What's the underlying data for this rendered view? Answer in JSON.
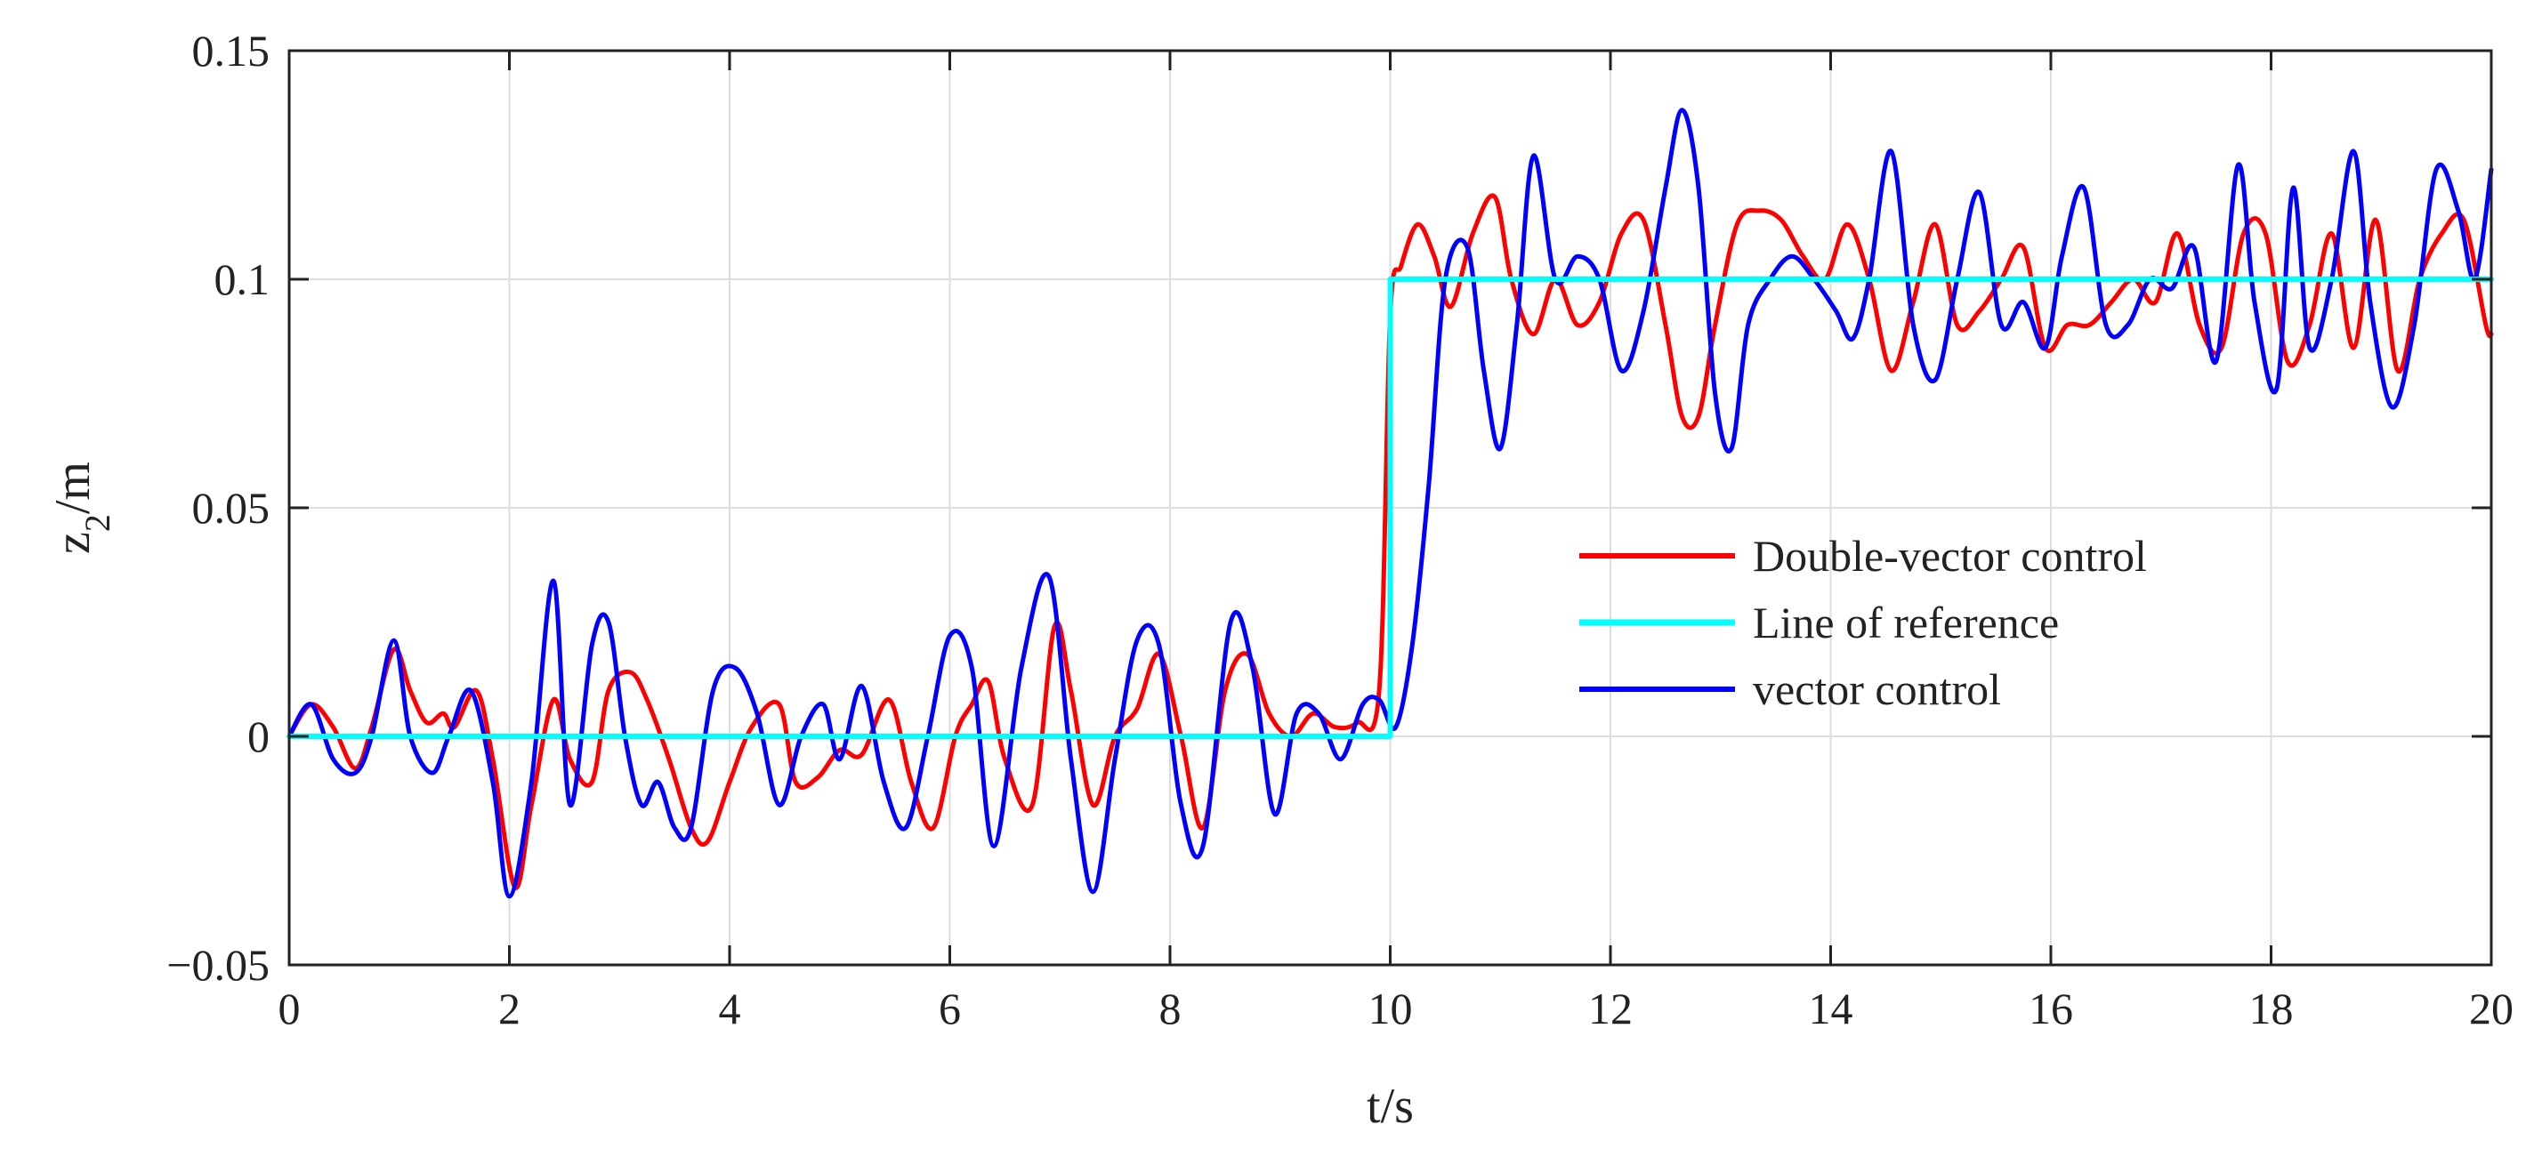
{
  "chart_data": {
    "type": "line",
    "title": "",
    "xlabel": "t/s",
    "ylabel": {
      "main": "z",
      "sub": "2",
      "unit": "/m"
    },
    "xlim": [
      0,
      20
    ],
    "ylim": [
      -0.05,
      0.15
    ],
    "xticks": [
      0,
      2,
      4,
      6,
      8,
      10,
      12,
      14,
      16,
      18,
      20
    ],
    "xtick_labels": [
      "0",
      "2",
      "4",
      "6",
      "8",
      "10",
      "12",
      "14",
      "16",
      "18",
      "20"
    ],
    "yticks": [
      -0.05,
      0,
      0.05,
      0.1,
      0.15
    ],
    "ytick_labels": [
      "−0.05",
      "0",
      "0.05",
      "0.1",
      "0.15"
    ],
    "grid": true,
    "legend_position": "center-right",
    "series": [
      {
        "name": "Double-vector control",
        "color": "#ff0000",
        "x": [
          0,
          0.2,
          0.4,
          0.6,
          0.75,
          0.95,
          1.1,
          1.25,
          1.4,
          1.5,
          1.7,
          1.85,
          2.05,
          2.2,
          2.4,
          2.55,
          2.75,
          2.9,
          3.1,
          3.25,
          3.45,
          3.65,
          3.8,
          4.0,
          4.2,
          4.45,
          4.6,
          4.8,
          5.0,
          5.2,
          5.45,
          5.65,
          5.85,
          6.05,
          6.2,
          6.35,
          6.5,
          6.75,
          6.95,
          7.1,
          7.3,
          7.5,
          7.7,
          7.9,
          8.1,
          8.3,
          8.5,
          8.7,
          8.9,
          9.1,
          9.3,
          9.5,
          9.7,
          9.9,
          10.0,
          10.1,
          10.25,
          10.4,
          10.55,
          10.75,
          10.95,
          11.1,
          11.3,
          11.5,
          11.7,
          11.9,
          12.1,
          12.3,
          12.5,
          12.65,
          12.8,
          12.95,
          13.15,
          13.35,
          13.55,
          13.75,
          13.95,
          14.15,
          14.35,
          14.55,
          14.75,
          14.95,
          15.15,
          15.35,
          15.55,
          15.75,
          15.95,
          16.15,
          16.35,
          16.55,
          16.75,
          16.95,
          17.15,
          17.35,
          17.55,
          17.75,
          17.95,
          18.15,
          18.35,
          18.55,
          18.75,
          18.95,
          19.15,
          19.35,
          19.55,
          19.75,
          19.95,
          20.0
        ],
        "y": [
          0,
          0.007,
          0.002,
          -0.007,
          0.002,
          0.019,
          0.01,
          0.003,
          0.005,
          0.002,
          0.01,
          -0.005,
          -0.033,
          -0.015,
          0.008,
          -0.005,
          -0.01,
          0.01,
          0.014,
          0.008,
          -0.005,
          -0.02,
          -0.023,
          -0.01,
          0.002,
          0.007,
          -0.01,
          -0.009,
          -0.003,
          -0.004,
          0.008,
          -0.01,
          -0.02,
          0.0,
          0.007,
          0.012,
          -0.005,
          -0.015,
          0.024,
          0.01,
          -0.015,
          0.0,
          0.006,
          0.018,
          0.0,
          -0.02,
          0.01,
          0.018,
          0.005,
          0.0,
          0.005,
          0.002,
          0.003,
          0.01,
          0.092,
          0.103,
          0.112,
          0.105,
          0.094,
          0.11,
          0.118,
          0.1,
          0.088,
          0.1,
          0.09,
          0.095,
          0.11,
          0.113,
          0.09,
          0.07,
          0.07,
          0.09,
          0.112,
          0.115,
          0.113,
          0.105,
          0.1,
          0.112,
          0.1,
          0.08,
          0.095,
          0.112,
          0.09,
          0.093,
          0.1,
          0.107,
          0.085,
          0.09,
          0.09,
          0.095,
          0.1,
          0.095,
          0.11,
          0.09,
          0.085,
          0.11,
          0.11,
          0.082,
          0.09,
          0.11,
          0.085,
          0.113,
          0.08,
          0.1,
          0.11,
          0.113,
          0.09,
          0.088
        ],
        "stroke_width": 5
      },
      {
        "name": "Line of reference",
        "color": "#00ffff",
        "x": [
          0,
          10,
          10,
          20
        ],
        "y": [
          0,
          0,
          0.1,
          0.1
        ],
        "stroke_width": 6
      },
      {
        "name": "vector control",
        "color": "#0000ff",
        "x": [
          0,
          0.2,
          0.4,
          0.6,
          0.75,
          0.95,
          1.1,
          1.3,
          1.45,
          1.65,
          1.85,
          2.0,
          2.2,
          2.4,
          2.55,
          2.75,
          2.9,
          3.05,
          3.2,
          3.35,
          3.5,
          3.65,
          3.85,
          4.05,
          4.25,
          4.45,
          4.65,
          4.85,
          5.0,
          5.2,
          5.4,
          5.6,
          5.8,
          6.0,
          6.2,
          6.4,
          6.65,
          6.9,
          7.1,
          7.3,
          7.5,
          7.7,
          7.9,
          8.1,
          8.3,
          8.55,
          8.75,
          8.95,
          9.15,
          9.35,
          9.55,
          9.75,
          9.9,
          10.05,
          10.2,
          10.35,
          10.5,
          10.7,
          10.85,
          11.0,
          11.15,
          11.3,
          11.5,
          11.7,
          11.9,
          12.1,
          12.3,
          12.5,
          12.65,
          12.8,
          12.95,
          13.1,
          13.25,
          13.45,
          13.65,
          13.85,
          14.05,
          14.2,
          14.35,
          14.55,
          14.75,
          14.95,
          15.15,
          15.35,
          15.55,
          15.75,
          15.95,
          16.1,
          16.3,
          16.5,
          16.7,
          16.9,
          17.1,
          17.3,
          17.5,
          17.7,
          17.85,
          18.05,
          18.2,
          18.35,
          18.55,
          18.75,
          18.9,
          19.1,
          19.3,
          19.5,
          19.7,
          19.85,
          20.0
        ],
        "y": [
          0,
          0.007,
          -0.005,
          -0.008,
          0.0,
          0.021,
          0.0,
          -0.008,
          0.0,
          0.01,
          -0.01,
          -0.035,
          -0.01,
          0.034,
          -0.015,
          0.02,
          0.025,
          0.0,
          -0.015,
          -0.01,
          -0.02,
          -0.02,
          0.01,
          0.015,
          0.005,
          -0.015,
          0.0,
          0.007,
          -0.005,
          0.011,
          -0.01,
          -0.02,
          0.0,
          0.022,
          0.015,
          -0.024,
          0.015,
          0.035,
          -0.005,
          -0.034,
          -0.005,
          0.021,
          0.02,
          -0.015,
          -0.024,
          0.025,
          0.015,
          -0.017,
          0.005,
          0.005,
          -0.005,
          0.007,
          0.008,
          0.002,
          0.02,
          0.055,
          0.1,
          0.107,
          0.08,
          0.063,
          0.09,
          0.127,
          0.1,
          0.105,
          0.1,
          0.08,
          0.093,
          0.12,
          0.137,
          0.12,
          0.075,
          0.063,
          0.09,
          0.1,
          0.105,
          0.1,
          0.093,
          0.087,
          0.1,
          0.128,
          0.09,
          0.078,
          0.1,
          0.119,
          0.09,
          0.095,
          0.085,
          0.105,
          0.12,
          0.09,
          0.09,
          0.1,
          0.098,
          0.107,
          0.082,
          0.125,
          0.095,
          0.076,
          0.12,
          0.085,
          0.1,
          0.128,
          0.095,
          0.072,
          0.09,
          0.124,
          0.115,
          0.1,
          0.124
        ],
        "stroke_width": 5
      }
    ]
  }
}
